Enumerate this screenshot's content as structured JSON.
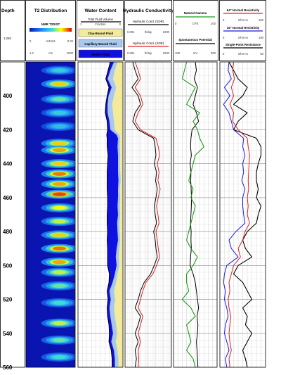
{
  "colors": {
    "mobile": "#1010e0",
    "capillary": "#a9c8ef",
    "clay": "#f3ea9a",
    "total_line": "#000000",
    "sdr": "#000000",
    "soe": "#e02020",
    "gamma": "#1a9a1a",
    "sp": "#000000",
    "res64": "#e02020",
    "res16": "#1a1ae0",
    "spr": "#000000",
    "grid": "#9a9a9a"
  },
  "header": {
    "depth_title": "Depth",
    "scale": "1:240",
    "t2": {
      "title": "T2 Distribution",
      "track_label": "NMR T2DIST",
      "min": "0",
      "unit": "m3/m3",
      "max": "0.02",
      "axis_min": "1.2",
      "axis_unit": "ms",
      "axis_max": "1000"
    },
    "water": {
      "title": "Water Content",
      "total_label": "Total Fluid Volume",
      "scale_min": "1",
      "scale_unit": "Fraction",
      "scale_max": "0",
      "legend": [
        {
          "label": "Clay-Bound Fluid",
          "color": "#f3ea9a",
          "text_color": "#000000"
        },
        {
          "label": "Capillary-Bound Fluid",
          "color": "#a9c8ef",
          "text_color": "#000000"
        },
        {
          "label": "Mobile Fluid",
          "color": "#1010e0",
          "text_color": "#ffffff"
        }
      ]
    },
    "hydraulic": {
      "title": "Hydraulic Conductivity",
      "sdr_label": "Hydraulic Cond. (SDR)",
      "sdr_min": "0.001",
      "sdr_unit": "ft/day",
      "sdr_max": "1000",
      "soe_label": "Hydraulic Cond. (SOE)",
      "soe_min": "0.001",
      "soe_unit": "ft/day",
      "soe_max": "1000"
    },
    "gamma": {
      "gamma_label": "Natural Gamma",
      "gamma_min": "0",
      "gamma_unit": "CPS",
      "gamma_max": "100",
      "sp_label": "Spontaneous Potential",
      "sp_min": "100",
      "sp_unit": "mV",
      "sp_max": "300"
    },
    "resist": {
      "r64_label": "64\" Normal Resistivity",
      "r64_min": "0",
      "r64_unit": "Ohm-m",
      "r64_max": "100",
      "r16_label": "16\" Normal Resistivity",
      "r16_min": "0",
      "r16_unit": "Ohm-m",
      "r16_max": "100",
      "spr_label": "Single-Point Resistance",
      "spr_min": "0",
      "spr_unit": "Ohm-m",
      "spr_max": "50"
    }
  },
  "chart_data": {
    "type": "well-log",
    "ylim": [
      380,
      560
    ],
    "y_reversed": true,
    "depth_ticks": [
      "400",
      "420",
      "440",
      "460",
      "480",
      "500",
      "520",
      "540",
      "560"
    ],
    "t2dist": {
      "xlim_ms": [
        1.2,
        1000
      ],
      "x_scale": "log",
      "peaks": [
        {
          "depth": 385,
          "intensity": 0.5
        },
        {
          "depth": 393,
          "intensity": 0.8
        },
        {
          "depth": 402,
          "intensity": 0.6
        },
        {
          "depth": 410,
          "intensity": 0.5
        },
        {
          "depth": 418,
          "intensity": 0.45
        },
        {
          "depth": 428,
          "intensity": 0.8
        },
        {
          "depth": 432,
          "intensity": 0.85
        },
        {
          "depth": 440,
          "intensity": 0.8
        },
        {
          "depth": 446,
          "intensity": 0.9
        },
        {
          "depth": 452,
          "intensity": 0.85
        },
        {
          "depth": 458,
          "intensity": 0.95
        },
        {
          "depth": 466,
          "intensity": 0.75
        },
        {
          "depth": 474,
          "intensity": 0.7
        },
        {
          "depth": 482,
          "intensity": 0.8
        },
        {
          "depth": 490,
          "intensity": 0.9
        },
        {
          "depth": 498,
          "intensity": 0.85
        },
        {
          "depth": 504,
          "intensity": 0.7
        },
        {
          "depth": 512,
          "intensity": 0.6
        },
        {
          "depth": 522,
          "intensity": 0.55
        },
        {
          "depth": 534,
          "intensity": 0.7
        },
        {
          "depth": 544,
          "intensity": 0.6
        },
        {
          "depth": 554,
          "intensity": 0.55
        }
      ]
    },
    "water_content": {
      "xlim": [
        1,
        0
      ],
      "depth": [
        380,
        385,
        390,
        395,
        400,
        405,
        410,
        415,
        420,
        423,
        425,
        430,
        435,
        440,
        445,
        450,
        455,
        460,
        465,
        470,
        475,
        480,
        485,
        490,
        495,
        500,
        505,
        510,
        515,
        520,
        525,
        530,
        535,
        540,
        545,
        550,
        555,
        560
      ],
      "clay_bound": [
        0.12,
        0.18,
        0.22,
        0.15,
        0.2,
        0.24,
        0.22,
        0.2,
        0.18,
        0.08,
        0.06,
        0.07,
        0.06,
        0.07,
        0.06,
        0.05,
        0.07,
        0.06,
        0.07,
        0.06,
        0.08,
        0.07,
        0.06,
        0.08,
        0.09,
        0.08,
        0.12,
        0.15,
        0.2,
        0.17,
        0.2,
        0.18,
        0.15,
        0.13,
        0.16,
        0.12,
        0.1,
        0.1
      ],
      "capillary_bound": [
        0.08,
        0.1,
        0.12,
        0.1,
        0.12,
        0.1,
        0.12,
        0.1,
        0.1,
        0.06,
        0.05,
        0.05,
        0.05,
        0.04,
        0.05,
        0.05,
        0.04,
        0.05,
        0.05,
        0.05,
        0.05,
        0.05,
        0.05,
        0.06,
        0.07,
        0.06,
        0.06,
        0.08,
        0.1,
        0.1,
        0.1,
        0.1,
        0.1,
        0.09,
        0.1,
        0.08,
        0.08,
        0.08
      ],
      "mobile": [
        0.08,
        0.05,
        0.04,
        0.06,
        0.03,
        0.04,
        0.05,
        0.05,
        0.06,
        0.22,
        0.24,
        0.23,
        0.22,
        0.23,
        0.24,
        0.25,
        0.24,
        0.23,
        0.22,
        0.24,
        0.22,
        0.22,
        0.24,
        0.2,
        0.18,
        0.2,
        0.12,
        0.08,
        0.05,
        0.06,
        0.05,
        0.06,
        0.06,
        0.08,
        0.05,
        0.06,
        0.06,
        0.06
      ]
    },
    "hydraulic": {
      "xlim": [
        0.001,
        1000
      ],
      "x_scale": "log",
      "depth": [
        380,
        385,
        390,
        395,
        400,
        405,
        410,
        415,
        420,
        425,
        430,
        435,
        440,
        445,
        450,
        455,
        460,
        465,
        470,
        475,
        480,
        485,
        490,
        495,
        500,
        505,
        510,
        515,
        520,
        525,
        530,
        535,
        540,
        545,
        550,
        555,
        560
      ],
      "sdr": [
        0.01,
        0.02,
        0.05,
        0.008,
        0.05,
        0.1,
        0.02,
        0.01,
        0.05,
        5,
        8,
        10,
        6,
        12,
        9,
        15,
        10,
        6,
        8,
        12,
        5,
        8,
        10,
        15,
        6,
        2,
        0.3,
        0.1,
        0.05,
        0.02,
        0.1,
        0.05,
        0.02,
        0.05,
        0.02,
        0.03,
        0.02
      ],
      "soe": [
        0.02,
        0.05,
        0.1,
        0.02,
        0.1,
        0.2,
        0.05,
        0.02,
        0.1,
        10,
        20,
        30,
        15,
        25,
        18,
        35,
        20,
        12,
        18,
        25,
        10,
        15,
        20,
        30,
        12,
        4,
        0.5,
        0.2,
        0.1,
        0.05,
        0.2,
        0.1,
        0.05,
        0.1,
        0.05,
        0.06,
        0.05
      ]
    },
    "gamma_sp": {
      "gamma_xlim": [
        0,
        100
      ],
      "sp_xlim": [
        100,
        300
      ],
      "depth": [
        380,
        385,
        390,
        395,
        400,
        405,
        410,
        415,
        420,
        425,
        430,
        435,
        440,
        445,
        450,
        455,
        460,
        465,
        470,
        475,
        480,
        485,
        490,
        495,
        500,
        505,
        510,
        515,
        520,
        525,
        530,
        535,
        540,
        545,
        550,
        555,
        560
      ],
      "gamma": [
        30,
        25,
        20,
        50,
        40,
        30,
        60,
        45,
        55,
        60,
        70,
        50,
        45,
        40,
        35,
        45,
        40,
        50,
        45,
        40,
        35,
        30,
        40,
        55,
        45,
        30,
        30,
        35,
        20,
        40,
        50,
        30,
        35,
        40,
        30,
        45,
        50
      ],
      "sp": [
        200,
        205,
        195,
        210,
        200,
        190,
        205,
        215,
        185,
        180,
        178,
        182,
        176,
        180,
        179,
        181,
        183,
        182,
        180,
        178,
        181,
        180,
        182,
        178,
        176,
        190,
        200,
        205,
        210,
        215,
        208,
        212,
        210,
        205,
        208,
        210,
        212
      ]
    },
    "resistivity": {
      "depth": [
        380,
        385,
        390,
        395,
        400,
        405,
        410,
        415,
        420,
        425,
        430,
        435,
        440,
        445,
        450,
        455,
        460,
        465,
        470,
        475,
        480,
        485,
        490,
        495,
        500,
        505,
        510,
        515,
        520,
        525,
        530,
        535,
        540,
        545,
        550,
        555,
        560
      ],
      "r64_xlim": [
        0,
        100
      ],
      "r64": [
        30,
        28,
        32,
        25,
        30,
        22,
        30,
        28,
        40,
        60,
        62,
        65,
        64,
        63,
        62,
        63,
        60,
        62,
        60,
        65,
        55,
        50,
        40,
        45,
        30,
        25,
        20,
        22,
        18,
        20,
        24,
        22,
        20,
        22,
        25,
        20,
        22
      ],
      "r16_xlim": [
        0,
        100
      ],
      "r16": [
        20,
        18,
        25,
        10,
        22,
        8,
        20,
        25,
        30,
        52,
        50,
        55,
        50,
        52,
        48,
        55,
        50,
        50,
        52,
        55,
        35,
        20,
        25,
        40,
        15,
        10,
        8,
        12,
        10,
        15,
        18,
        12,
        10,
        15,
        20,
        12,
        15
      ],
      "spr_xlim": [
        0,
        50
      ],
      "spr": [
        10,
        15,
        20,
        30,
        25,
        15,
        30,
        20,
        15,
        40,
        45,
        45,
        42,
        40,
        40,
        42,
        40,
        45,
        42,
        40,
        30,
        25,
        28,
        35,
        20,
        15,
        25,
        30,
        35,
        25,
        30,
        28,
        35,
        30,
        25,
        28,
        30
      ]
    }
  }
}
